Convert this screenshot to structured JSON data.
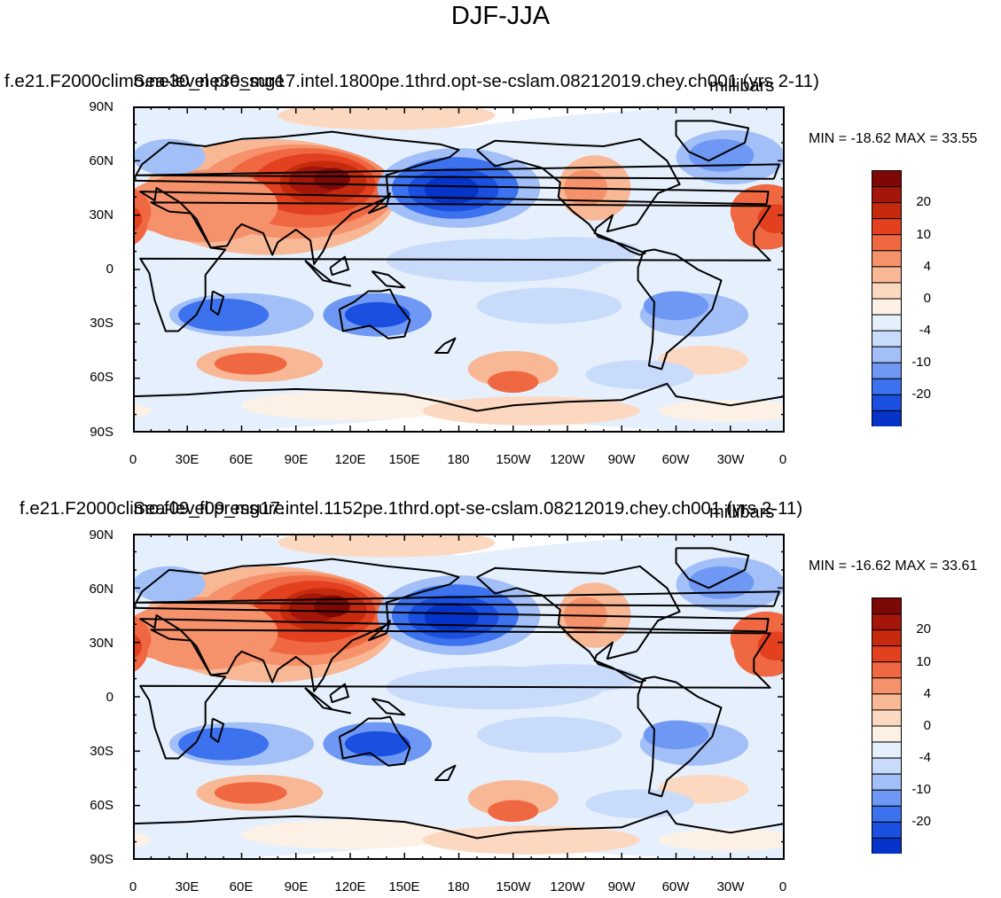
{
  "title": "DJF-JJA",
  "colors": {
    "levels": [
      "#08006a",
      "#0c1ea0",
      "#0634c8",
      "#1a4fe0",
      "#3c72ee",
      "#6e98f4",
      "#a2bff7",
      "#c9dbfa",
      "#e6f0fd",
      "#fdf1e6",
      "#fcd8c1",
      "#f8b896",
      "#f5916b",
      "#ef6841",
      "#e3401f",
      "#c62a0d",
      "#a4150a",
      "#7e0806"
    ],
    "coast": "#000000"
  },
  "colorbar": {
    "labels": [
      "20",
      "10",
      "4",
      "0",
      "-4",
      "-10",
      "-20"
    ]
  },
  "axes": {
    "lat_labels": [
      "90N",
      "60N",
      "30N",
      "0",
      "30S",
      "60S",
      "90S"
    ],
    "lon_labels": [
      "0",
      "30E",
      "60E",
      "90E",
      "120E",
      "150E",
      "180",
      "150W",
      "120W",
      "90W",
      "60W",
      "30W",
      "0"
    ]
  },
  "panels": [
    {
      "case": "f.e21.F2000climo.ne30_ne30_mg17.intel.1800pe.1thrd.opt-se-cslam.08212019.chey.ch001 (yrs 2-11)",
      "variable": "Sea-level pressure",
      "units": "millibars",
      "minmax": "MIN = -18.62 MAX =  33.55"
    },
    {
      "case": "f.e21.F2000climo.f09_f09_mg17.intel.1152pe.1thrd.opt-se-cslam.08212019.chey.ch001 (yrs 2-11)",
      "variable": "Sea-level pressure",
      "units": "millibars",
      "minmax": "MIN = -16.62 MAX =  33.61"
    }
  ]
}
